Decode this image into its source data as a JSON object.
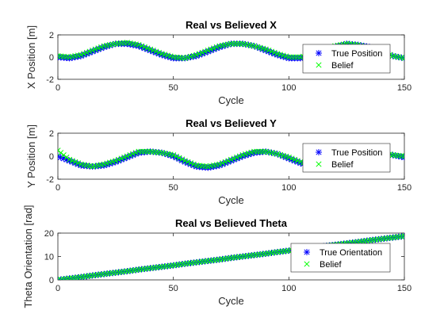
{
  "chart_data": [
    {
      "type": "scatter",
      "title": "Real vs Believed X",
      "xlabel": "Cycle",
      "ylabel": "X Position [m]",
      "xlim": [
        0,
        150
      ],
      "ylim": [
        -2,
        2
      ],
      "xticks": [
        "0",
        "50",
        "100",
        "150"
      ],
      "yticks": [
        "-2",
        "0",
        "2"
      ],
      "legend_position": "right",
      "x": [
        0,
        5,
        10,
        15,
        20,
        25,
        30,
        35,
        40,
        45,
        50,
        55,
        60,
        65,
        70,
        75,
        80,
        85,
        90,
        95,
        100,
        105,
        110,
        115,
        120,
        125,
        130,
        135,
        140,
        145,
        150
      ],
      "series": [
        {
          "name": "True Position",
          "marker": "asterisk",
          "color": "#0000ff",
          "values": [
            0.0,
            -0.1,
            0.1,
            0.5,
            0.9,
            1.2,
            1.2,
            1.0,
            0.6,
            0.2,
            -0.1,
            -0.1,
            0.1,
            0.5,
            0.9,
            1.2,
            1.2,
            1.0,
            0.6,
            0.2,
            -0.1,
            -0.1,
            0.1,
            0.5,
            0.9,
            1.2,
            1.1,
            0.9,
            0.5,
            0.1,
            -0.1
          ]
        },
        {
          "name": "Belief",
          "marker": "x",
          "color": "#00ff00",
          "values": [
            0.1,
            0.0,
            0.2,
            0.6,
            1.0,
            1.2,
            1.3,
            1.1,
            0.7,
            0.3,
            0.0,
            -0.1,
            0.2,
            0.6,
            1.0,
            1.2,
            1.2,
            1.0,
            0.7,
            0.3,
            0.0,
            0.0,
            0.2,
            0.6,
            1.0,
            1.2,
            1.1,
            0.8,
            0.5,
            0.1,
            -0.1
          ]
        }
      ]
    },
    {
      "type": "scatter",
      "title": "Real vs Believed Y",
      "xlabel": "Cycle",
      "ylabel": "Y Position [m]",
      "xlim": [
        0,
        150
      ],
      "ylim": [
        -2,
        2
      ],
      "xticks": [
        "0",
        "50",
        "100",
        "150"
      ],
      "yticks": [
        "-2",
        "0",
        "2"
      ],
      "legend_position": "right",
      "x": [
        0,
        5,
        10,
        15,
        20,
        25,
        30,
        35,
        40,
        45,
        50,
        55,
        60,
        65,
        70,
        75,
        80,
        85,
        90,
        95,
        100,
        105,
        110,
        115,
        120,
        125,
        130,
        135,
        140,
        145,
        150
      ],
      "series": [
        {
          "name": "True Position",
          "marker": "asterisk",
          "color": "#0000ff",
          "values": [
            0.0,
            -0.4,
            -0.8,
            -0.9,
            -0.8,
            -0.5,
            -0.1,
            0.3,
            0.4,
            0.3,
            0.0,
            -0.5,
            -0.9,
            -1.0,
            -0.8,
            -0.4,
            0.0,
            0.3,
            0.4,
            0.2,
            -0.2,
            -0.6,
            -0.9,
            -1.0,
            -0.8,
            -0.4,
            0.0,
            0.2,
            0.3,
            0.1,
            -0.1
          ]
        },
        {
          "name": "Belief",
          "marker": "x",
          "color": "#00ff00",
          "values": [
            0.5,
            -0.3,
            -0.7,
            -0.9,
            -0.7,
            -0.4,
            0.0,
            0.4,
            0.4,
            0.3,
            0.1,
            -0.4,
            -0.8,
            -0.9,
            -0.7,
            -0.3,
            0.1,
            0.4,
            0.4,
            0.2,
            -0.1,
            -0.5,
            -0.8,
            -0.9,
            -0.7,
            -0.3,
            0.1,
            0.3,
            0.3,
            0.1,
            0.0
          ]
        }
      ]
    },
    {
      "type": "scatter",
      "title": "Real vs Believed Theta",
      "xlabel": "Cycle",
      "ylabel": "Theta Orientation [rad]",
      "xlim": [
        0,
        150
      ],
      "ylim": [
        0,
        20
      ],
      "xticks": [
        "0",
        "50",
        "100",
        "150"
      ],
      "yticks": [
        "0",
        "10",
        "20"
      ],
      "legend_position": "right",
      "x": [
        0,
        5,
        10,
        15,
        20,
        25,
        30,
        35,
        40,
        45,
        50,
        55,
        60,
        65,
        70,
        75,
        80,
        85,
        90,
        95,
        100,
        105,
        110,
        115,
        120,
        125,
        130,
        135,
        140,
        145,
        150
      ],
      "series": [
        {
          "name": "True Orientation",
          "marker": "asterisk",
          "color": "#0000ff",
          "values": [
            0.0,
            0.6,
            1.2,
            1.9,
            2.5,
            3.1,
            3.7,
            4.4,
            5.0,
            5.6,
            6.2,
            6.9,
            7.5,
            8.1,
            8.7,
            9.4,
            10.0,
            10.6,
            11.2,
            11.9,
            12.5,
            13.1,
            13.7,
            14.4,
            15.0,
            15.6,
            16.2,
            16.9,
            17.5,
            18.1,
            18.7
          ]
        },
        {
          "name": "Belief",
          "marker": "x",
          "color": "#00ff00",
          "values": [
            0.0,
            0.6,
            1.2,
            1.9,
            2.5,
            3.1,
            3.7,
            4.4,
            5.0,
            5.6,
            6.2,
            6.9,
            7.5,
            8.1,
            8.7,
            9.4,
            10.0,
            10.6,
            11.2,
            11.9,
            12.5,
            13.1,
            13.7,
            14.4,
            15.0,
            15.6,
            16.2,
            16.9,
            17.5,
            18.1,
            18.7
          ]
        }
      ]
    }
  ]
}
